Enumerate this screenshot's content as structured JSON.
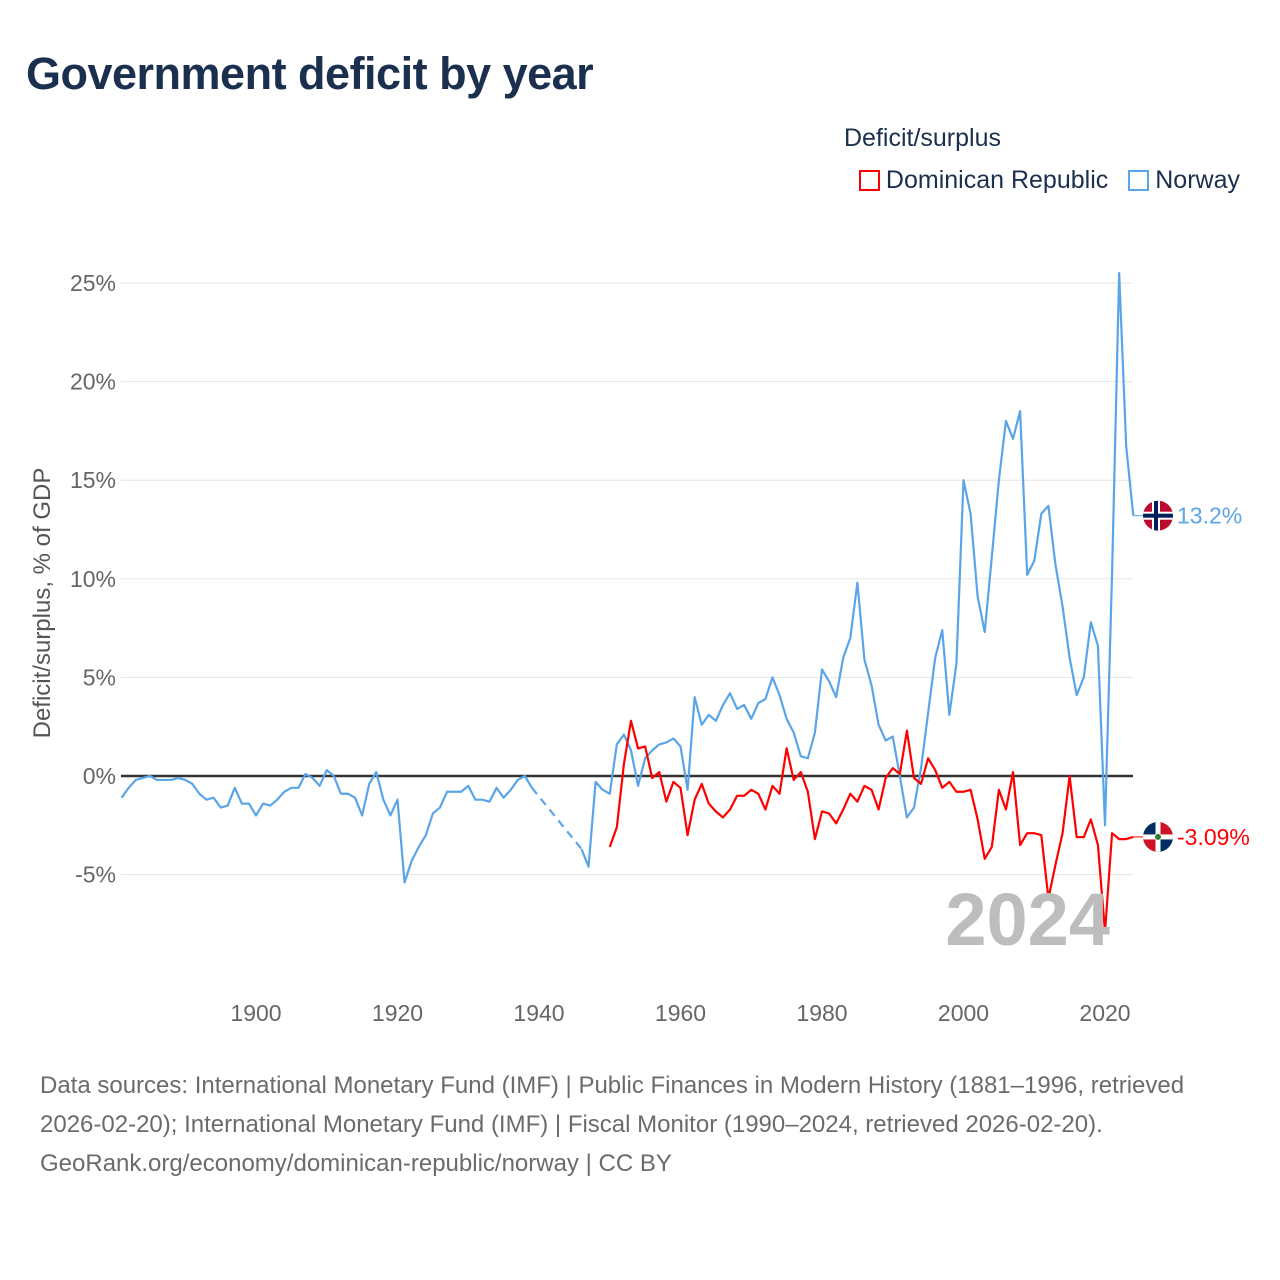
{
  "title": "Government deficit by year",
  "legend": {
    "title": "Deficit/surplus",
    "items": [
      {
        "label": "Dominican Republic",
        "color": "#ff0000"
      },
      {
        "label": "Norway",
        "color": "#5aa5e8"
      }
    ]
  },
  "year_watermark": "2024",
  "footer": {
    "sources": "Data sources: International Monetary Fund (IMF) | Public Finances in Modern History (1881–1996, retrieved 2026-02-20); International Monetary Fund (IMF) | Fiscal Monitor (1990–2024, retrieved 2026-02-20).",
    "credit": "GeoRank.org/economy/dominican-republic/norway | CC BY"
  },
  "chart_data": {
    "type": "line",
    "title": "Government deficit by year",
    "xlabel": "",
    "ylabel": "Deficit/surplus, % of GDP",
    "xlim": [
      1881,
      2024
    ],
    "ylim": [
      -9.3,
      25.5
    ],
    "xticks": [
      1900,
      1920,
      1940,
      1960,
      1980,
      2000,
      2020
    ],
    "yticks": [
      -5,
      0,
      5,
      10,
      15,
      20,
      25
    ],
    "ytick_labels": [
      "-5%",
      "0%",
      "5%",
      "10%",
      "15%",
      "20%",
      "25%"
    ],
    "grid": true,
    "legend_position": "top-right",
    "series": [
      {
        "name": "Norway",
        "color": "#5aa5e8",
        "end_label": "13.2%",
        "start_year": 1881,
        "values": [
          -1.1,
          -0.6,
          -0.2,
          -0.1,
          0.0,
          -0.2,
          -0.2,
          -0.2,
          -0.1,
          -0.2,
          -0.4,
          -0.9,
          -1.2,
          -1.1,
          -1.6,
          -1.5,
          -0.6,
          -1.4,
          -1.4,
          -2.0,
          -1.4,
          -1.5,
          -1.2,
          -0.8,
          -0.6,
          -0.6,
          0.1,
          -0.1,
          -0.5,
          0.3,
          0.0,
          -0.9,
          -0.9,
          -1.1,
          -2.0,
          -0.4,
          0.2,
          -1.2,
          -2.0,
          -1.2,
          -5.4,
          -4.3,
          -3.6,
          -3.0,
          -1.9,
          -1.6,
          -0.8,
          -0.8,
          -0.8,
          -0.5,
          -1.2,
          -1.2,
          -1.3,
          -0.6,
          -1.1,
          -0.7,
          -0.2,
          0.0,
          -0.6,
          null,
          null,
          null,
          null,
          null,
          null,
          -3.7,
          -4.6,
          -0.3,
          -0.7,
          -0.9,
          1.6,
          2.1,
          1.3,
          -0.5,
          0.9,
          1.3,
          1.6,
          1.7,
          1.9,
          1.5,
          -0.7,
          4.0,
          2.6,
          3.1,
          2.8,
          3.6,
          4.2,
          3.4,
          3.6,
          2.9,
          3.7,
          3.9,
          5.0,
          4.1,
          2.9,
          2.2,
          1.0,
          0.9,
          2.2,
          5.4,
          4.8,
          4.0,
          6.0,
          7.0,
          9.8,
          5.9,
          4.6,
          2.6,
          1.8,
          2.0,
          0.0,
          -2.1,
          -1.6,
          0.4,
          3.2,
          6.0,
          7.4,
          3.1,
          5.7,
          15.0,
          13.3,
          9.1,
          7.3,
          11.1,
          15.0,
          18.0,
          17.1,
          18.5,
          10.2,
          10.9,
          13.3,
          13.7,
          10.7,
          8.6,
          6.0,
          4.1,
          5.0,
          7.8,
          6.6,
          -2.5,
          10.3,
          25.5,
          16.7,
          13.2
        ]
      },
      {
        "name": "Dominican Republic",
        "color": "#ff0000",
        "end_label": "-3.09%",
        "start_year": 1950,
        "values": [
          -3.6,
          -2.6,
          0.6,
          2.8,
          1.4,
          1.5,
          -0.1,
          0.2,
          -1.3,
          -0.3,
          -0.6,
          -3.0,
          -1.2,
          -0.4,
          -1.4,
          -1.8,
          -2.1,
          -1.7,
          -1.0,
          -1.0,
          -0.7,
          -0.9,
          -1.7,
          -0.5,
          -0.9,
          1.4,
          -0.2,
          0.2,
          -0.8,
          -3.2,
          -1.8,
          -1.9,
          -2.4,
          -1.7,
          -0.9,
          -1.3,
          -0.5,
          -0.7,
          -1.7,
          -0.1,
          0.4,
          0.1,
          2.3,
          -0.1,
          -0.4,
          0.9,
          0.3,
          -0.6,
          -0.3,
          -0.8,
          -0.8,
          -0.7,
          -2.2,
          -4.2,
          -3.6,
          -0.7,
          -1.7,
          0.2,
          -3.5,
          -2.9,
          -2.9,
          -3.0,
          -6.2,
          -4.5,
          -2.9,
          0.0,
          -3.1,
          -3.1,
          -2.2,
          -3.5,
          -7.9,
          -2.9,
          -3.2,
          -3.2,
          -3.09
        ]
      }
    ]
  }
}
